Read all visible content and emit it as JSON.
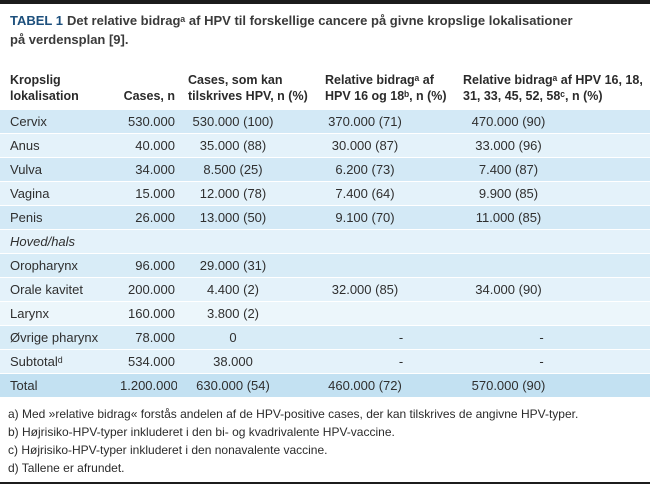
{
  "title": {
    "label": "TABEL 1",
    "line1": "Det relative bidragᵃ af HPV til forskellige cancere på givne kropslige lokalisationer",
    "line2": "på verdensplan [9]."
  },
  "table": {
    "columns": [
      {
        "line1": "Kropslig",
        "line2": "lokalisation"
      },
      {
        "line1": "",
        "line2": "Cases, n"
      },
      {
        "line1": "Cases, som kan",
        "line2": "tilskrives HPV, n (%)"
      },
      {
        "line1": "Relative bidragᵃ af",
        "line2": "HPV 16 og 18ᵇ, n (%)"
      },
      {
        "line1": "Relative bidragᵃ af HPV 16, 18,",
        "line2": "31, 33, 45, 52, 58ᶜ, n (%)"
      }
    ],
    "rows": [
      {
        "label": "Cervix",
        "cases": "530.000",
        "attrib": "530.000 (100)",
        "hpv2": "370.000 (71)",
        "hpv7": "470.000 (90)"
      },
      {
        "label": "Anus",
        "cases": "40.000",
        "attrib": "35.000 (88)",
        "hpv2": "30.000 (87)",
        "hpv7": "33.000 (96)"
      },
      {
        "label": "Vulva",
        "cases": "34.000",
        "attrib": "8.500 (25)",
        "hpv2": "6.200 (73)",
        "hpv7": "7.400 (87)"
      },
      {
        "label": "Vagina",
        "cases": "15.000",
        "attrib": "12.000 (78)",
        "hpv2": "7.400 (64)",
        "hpv7": "9.900 (85)"
      },
      {
        "label": "Penis",
        "cases": "26.000",
        "attrib": "13.000 (50)",
        "hpv2": "9.100 (70)",
        "hpv7": "11.000 (85)"
      },
      {
        "label": "Hoved/hals",
        "cases": "",
        "attrib": "",
        "hpv2": "",
        "hpv7": ""
      },
      {
        "label": "Oropharynx",
        "cases": "96.000",
        "attrib": "29.000 (31)",
        "hpv2": "",
        "hpv7": ""
      },
      {
        "label": "Orale kavitet",
        "cases": "200.000",
        "attrib": "4.400 (2)",
        "hpv2": "32.000 (85)",
        "hpv7": "34.000 (90)"
      },
      {
        "label": "Larynx",
        "cases": "160.000",
        "attrib": "3.800 (2)",
        "hpv2": "",
        "hpv7": ""
      },
      {
        "label": "Øvrige pharynx",
        "cases": "78.000",
        "attrib": "0",
        "hpv2": "-",
        "hpv7": "-"
      },
      {
        "label": "Subtotalᵈ",
        "cases": "534.000",
        "attrib": "38.000",
        "hpv2": "-",
        "hpv7": "-"
      },
      {
        "label": "Total",
        "cases": "1.200.000",
        "attrib": "630.000 (54)",
        "hpv2": "460.000 (72)",
        "hpv7": "570.000 (90)"
      }
    ]
  },
  "footnotes": [
    "a) Med »relative bidrag« forstås andelen af de HPV-positive cases, der kan tilskrives de angivne HPV-typer.",
    "b) Højrisiko-HPV-typer inkluderet i den bi- og kvadrivalente HPV-vaccine.",
    "c) Højrisiko-HPV-typer inkluderet i den nonavalente vaccine.",
    "d) Tallene er afrundet."
  ],
  "colors": {
    "title_accent": "#1c4f7c",
    "row_dark": "#d3e9f6",
    "row_light": "#e4f2fa",
    "row_total": "#c3e1f2",
    "border_bar": "#1c1c1c"
  }
}
